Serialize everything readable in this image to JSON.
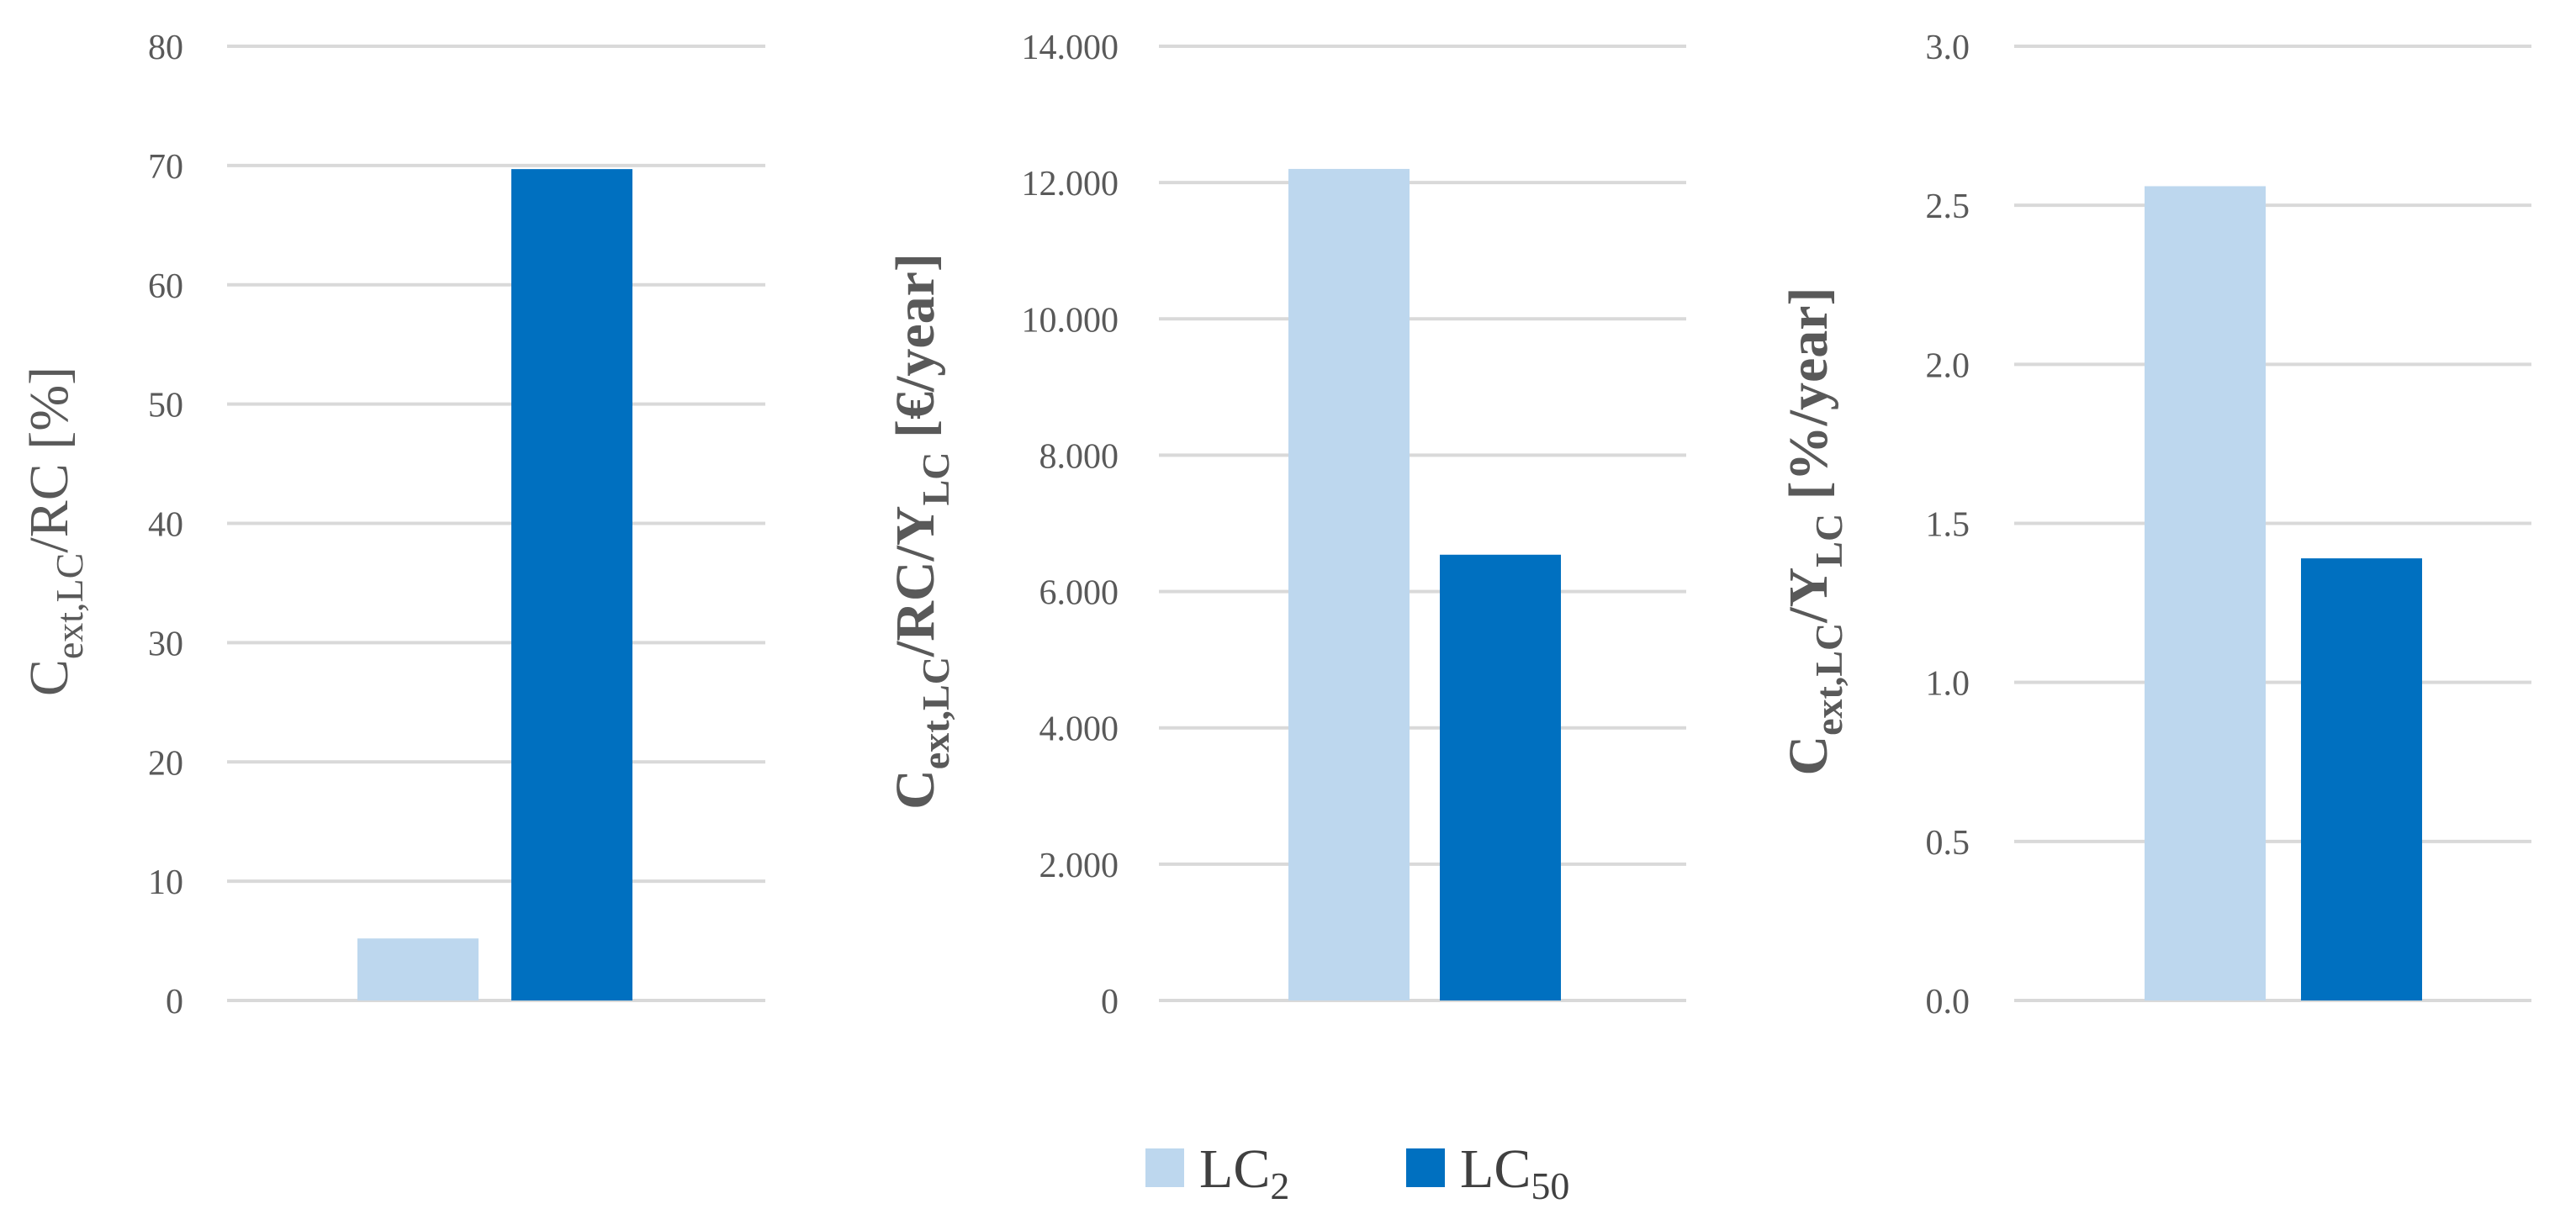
{
  "chart_data": [
    {
      "type": "bar",
      "categories": [
        ""
      ],
      "series": [
        {
          "name": "LC",
          "sub": "2",
          "values": [
            5.2
          ]
        },
        {
          "name": "LC",
          "sub": "50",
          "values": [
            69.7
          ]
        }
      ],
      "ylabel": {
        "main": "C",
        "sub1": "ext,LC",
        "rest": "/RC [%]"
      },
      "ylim": [
        0,
        80
      ],
      "yticks": [
        "0",
        "10",
        "20",
        "30",
        "40",
        "50",
        "60",
        "70",
        "80"
      ],
      "grid": true
    },
    {
      "type": "bar",
      "categories": [
        ""
      ],
      "series": [
        {
          "name": "LC",
          "sub": "2",
          "values": [
            12200
          ]
        },
        {
          "name": "LC",
          "sub": "50",
          "values": [
            6540
          ]
        }
      ],
      "ylabel": {
        "main": "C",
        "sub1": "ext,LC",
        "mid": "/RC/Y",
        "sub2": "LC",
        "rest": " [€/year]"
      },
      "ylim": [
        0,
        14000
      ],
      "yticks": [
        "0",
        "2.000",
        "4.000",
        "6.000",
        "8.000",
        "10.000",
        "12.000",
        "14.000"
      ],
      "grid": true
    },
    {
      "type": "bar",
      "categories": [
        ""
      ],
      "series": [
        {
          "name": "LC",
          "sub": "2",
          "values": [
            2.56
          ]
        },
        {
          "name": "LC",
          "sub": "50",
          "values": [
            1.39
          ]
        }
      ],
      "ylabel": {
        "main": "C",
        "sub1": "ext,LC",
        "mid": "/Y",
        "sub2": "LC",
        "rest": " [%/year]"
      },
      "ylim": [
        0,
        3.0
      ],
      "yticks": [
        "0.0",
        "0.5",
        "1.0",
        "1.5",
        "2.0",
        "2.5",
        "3.0"
      ],
      "grid": true
    }
  ],
  "legend": {
    "placement": "bottom-center",
    "items": [
      {
        "label": "LC",
        "sub": "2",
        "color": "#bdd7ee"
      },
      {
        "label": "LC",
        "sub": "50",
        "color": "#0070c0"
      }
    ]
  },
  "colors": {
    "series1": "#bdd7ee",
    "series2": "#0070c0",
    "grid": "#d9d9d9",
    "text": "#595959"
  }
}
